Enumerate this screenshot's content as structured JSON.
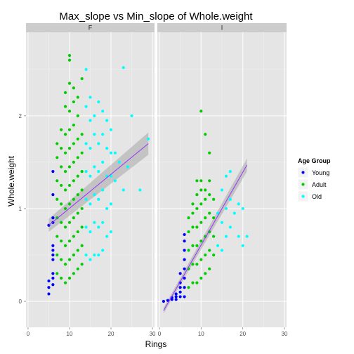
{
  "chart_data": {
    "type": "scatter",
    "title": "Max_slope vs Min_slope of Whole.weight",
    "xlabel": "Rings",
    "ylabel": "Whole.weight",
    "xlim": [
      -0.5,
      30.5
    ],
    "ylim": [
      -0.28,
      2.9
    ],
    "x_ticks": [
      0,
      10,
      20,
      30
    ],
    "y_ticks": [
      0,
      1,
      2
    ],
    "grid": true,
    "facets": [
      "F",
      "I"
    ],
    "legend": {
      "title": "Age Group",
      "position": "right",
      "entries": [
        {
          "name": "Young",
          "color": "#0000ff"
        },
        {
          "name": "Adult",
          "color": "#00cc00"
        },
        {
          "name": "Old",
          "color": "#00ffff"
        }
      ]
    },
    "series": [
      {
        "name": "Young",
        "color": "#0000ff",
        "facets": {
          "F": [
            [
              5,
              0.08
            ],
            [
              5,
              0.15
            ],
            [
              5,
              0.22
            ],
            [
              5,
              0.82
            ],
            [
              6,
              0.18
            ],
            [
              6,
              0.25
            ],
            [
              6,
              0.3
            ],
            [
              6,
              0.45
            ],
            [
              6,
              0.5
            ],
            [
              6,
              0.55
            ],
            [
              6,
              0.6
            ],
            [
              6,
              0.85
            ],
            [
              6,
              0.9
            ],
            [
              6,
              1.15
            ],
            [
              6,
              1.4
            ]
          ],
          "I": [
            [
              1,
              0.0
            ],
            [
              2,
              0.01
            ],
            [
              3,
              0.02
            ],
            [
              3,
              0.04
            ],
            [
              4,
              0.02
            ],
            [
              4,
              0.05
            ],
            [
              4,
              0.08
            ],
            [
              5,
              0.05
            ],
            [
              5,
              0.1
            ],
            [
              5,
              0.15
            ],
            [
              5,
              0.2
            ],
            [
              5,
              0.3
            ],
            [
              6,
              0.05
            ],
            [
              6,
              0.15
            ],
            [
              6,
              0.25
            ],
            [
              6,
              0.35
            ],
            [
              6,
              0.45
            ],
            [
              6,
              0.55
            ],
            [
              6,
              0.65
            ],
            [
              6,
              0.72
            ]
          ]
        }
      },
      {
        "name": "Adult",
        "color": "#00cc00",
        "facets": {
          "F": [
            [
              7,
              0.3
            ],
            [
              7,
              0.5
            ],
            [
              7,
              0.7
            ],
            [
              7,
              0.9
            ],
            [
              7,
              1.1
            ],
            [
              7,
              1.3
            ],
            [
              7,
              1.55
            ],
            [
              7,
              1.7
            ],
            [
              8,
              0.25
            ],
            [
              8,
              0.45
            ],
            [
              8,
              0.65
            ],
            [
              8,
              0.85
            ],
            [
              8,
              1.05
            ],
            [
              8,
              1.25
            ],
            [
              8,
              1.45
            ],
            [
              8,
              1.65
            ],
            [
              8,
              1.85
            ],
            [
              9,
              0.2
            ],
            [
              9,
              0.4
            ],
            [
              9,
              0.6
            ],
            [
              9,
              0.8
            ],
            [
              9,
              1.0
            ],
            [
              9,
              1.2
            ],
            [
              9,
              1.4
            ],
            [
              9,
              1.6
            ],
            [
              9,
              1.8
            ],
            [
              9,
              2.1
            ],
            [
              9,
              2.25
            ],
            [
              10,
              0.25
            ],
            [
              10,
              0.45
            ],
            [
              10,
              0.65
            ],
            [
              10,
              0.85
            ],
            [
              10,
              1.05
            ],
            [
              10,
              1.25
            ],
            [
              10,
              1.45
            ],
            [
              10,
              1.65
            ],
            [
              10,
              1.85
            ],
            [
              10,
              2.05
            ],
            [
              10,
              2.35
            ],
            [
              10,
              2.65
            ],
            [
              10,
              2.6
            ],
            [
              11,
              0.3
            ],
            [
              11,
              0.5
            ],
            [
              11,
              0.7
            ],
            [
              11,
              0.9
            ],
            [
              11,
              1.1
            ],
            [
              11,
              1.3
            ],
            [
              11,
              1.5
            ],
            [
              11,
              1.7
            ],
            [
              11,
              1.9
            ],
            [
              11,
              2.15
            ],
            [
              11,
              2.3
            ],
            [
              12,
              0.35
            ],
            [
              12,
              0.55
            ],
            [
              12,
              0.75
            ],
            [
              12,
              0.95
            ],
            [
              12,
              1.15
            ],
            [
              12,
              1.35
            ],
            [
              12,
              1.55
            ],
            [
              12,
              1.75
            ],
            [
              12,
              2.0
            ],
            [
              12,
              2.2
            ],
            [
              13,
              0.4
            ],
            [
              13,
              0.6
            ],
            [
              13,
              0.8
            ],
            [
              13,
              1.0
            ],
            [
              13,
              1.2
            ],
            [
              13,
              1.4
            ],
            [
              13,
              1.6
            ],
            [
              13,
              1.8
            ],
            [
              13,
              2.4
            ]
          ],
          "I": [
            [
              7,
              0.15
            ],
            [
              7,
              0.35
            ],
            [
              7,
              0.55
            ],
            [
              7,
              0.75
            ],
            [
              7,
              0.9
            ],
            [
              8,
              0.2
            ],
            [
              8,
              0.4
            ],
            [
              8,
              0.6
            ],
            [
              8,
              0.8
            ],
            [
              8,
              0.95
            ],
            [
              8,
              1.05
            ],
            [
              9,
              0.2
            ],
            [
              9,
              0.4
            ],
            [
              9,
              0.6
            ],
            [
              9,
              0.8
            ],
            [
              9,
              1.0
            ],
            [
              9,
              1.15
            ],
            [
              9,
              1.3
            ],
            [
              10,
              0.25
            ],
            [
              10,
              0.45
            ],
            [
              10,
              0.65
            ],
            [
              10,
              0.85
            ],
            [
              10,
              1.05
            ],
            [
              10,
              1.2
            ],
            [
              10,
              1.3
            ],
            [
              10,
              2.05
            ],
            [
              11,
              0.3
            ],
            [
              11,
              0.5
            ],
            [
              11,
              0.7
            ],
            [
              11,
              0.9
            ],
            [
              11,
              1.1
            ],
            [
              11,
              1.2
            ],
            [
              11,
              1.8
            ],
            [
              12,
              0.35
            ],
            [
              12,
              0.55
            ],
            [
              12,
              0.75
            ],
            [
              12,
              0.95
            ],
            [
              12,
              1.15
            ],
            [
              12,
              1.3
            ],
            [
              12,
              1.6
            ],
            [
              13,
              0.5
            ],
            [
              13,
              0.7
            ],
            [
              13,
              0.9
            ],
            [
              13,
              1.1
            ]
          ]
        }
      },
      {
        "name": "Old",
        "color": "#00ffff",
        "facets": {
          "F": [
            [
              14,
              0.5
            ],
            [
              14,
              0.8
            ],
            [
              14,
              1.1
            ],
            [
              14,
              1.4
            ],
            [
              14,
              1.7
            ],
            [
              14,
              2.1
            ],
            [
              14,
              2.5
            ],
            [
              15,
              0.45
            ],
            [
              15,
              0.75
            ],
            [
              15,
              1.05
            ],
            [
              15,
              1.35
            ],
            [
              15,
              1.65
            ],
            [
              15,
              1.95
            ],
            [
              15,
              2.2
            ],
            [
              16,
              0.5
            ],
            [
              16,
              0.85
            ],
            [
              16,
              1.15
            ],
            [
              16,
              1.45
            ],
            [
              16,
              1.8
            ],
            [
              16,
              2.0
            ],
            [
              17,
              0.5
            ],
            [
              17,
              0.8
            ],
            [
              17,
              1.1
            ],
            [
              17,
              1.4
            ],
            [
              17,
              1.7
            ],
            [
              17,
              2.15
            ],
            [
              18,
              0.55
            ],
            [
              18,
              0.85
            ],
            [
              18,
              1.2
            ],
            [
              18,
              1.5
            ],
            [
              18,
              1.8
            ],
            [
              18,
              2.05
            ],
            [
              19,
              0.7
            ],
            [
              19,
              1.0
            ],
            [
              19,
              1.35
            ],
            [
              19,
              1.65
            ],
            [
              19,
              1.95
            ],
            [
              20,
              0.75
            ],
            [
              20,
              1.05
            ],
            [
              20,
              1.35
            ],
            [
              20,
              1.6
            ],
            [
              20,
              1.85
            ],
            [
              21,
              1.3
            ],
            [
              21,
              1.6
            ],
            [
              22,
              1.5
            ],
            [
              23,
              1.2
            ],
            [
              23,
              2.52
            ],
            [
              24,
              1.45
            ],
            [
              25,
              2.0
            ],
            [
              27,
              1.2
            ],
            [
              29,
              1.75
            ]
          ],
          "I": [
            [
              14,
              0.6
            ],
            [
              14,
              0.95
            ],
            [
              15,
              0.55
            ],
            [
              15,
              0.85
            ],
            [
              15,
              1.2
            ],
            [
              16,
              0.7
            ],
            [
              16,
              1.0
            ],
            [
              16,
              1.35
            ],
            [
              17,
              0.8
            ],
            [
              17,
              1.1
            ],
            [
              17,
              1.4
            ],
            [
              18,
              0.95
            ],
            [
              19,
              0.7
            ],
            [
              19,
              1.05
            ],
            [
              20,
              0.6
            ],
            [
              20,
              1.0
            ],
            [
              21,
              0.7
            ]
          ]
        }
      }
    ],
    "regression": {
      "color": "#9933ff",
      "band_color": "#999999",
      "facets": {
        "F": {
          "x": [
            5,
            29
          ],
          "y": [
            0.82,
            1.7
          ],
          "se": [
            0.07,
            0.12
          ]
        },
        "I": {
          "x": [
            1,
            21
          ],
          "y": [
            -0.1,
            1.47
          ],
          "se": [
            0.03,
            0.07
          ]
        }
      }
    }
  }
}
